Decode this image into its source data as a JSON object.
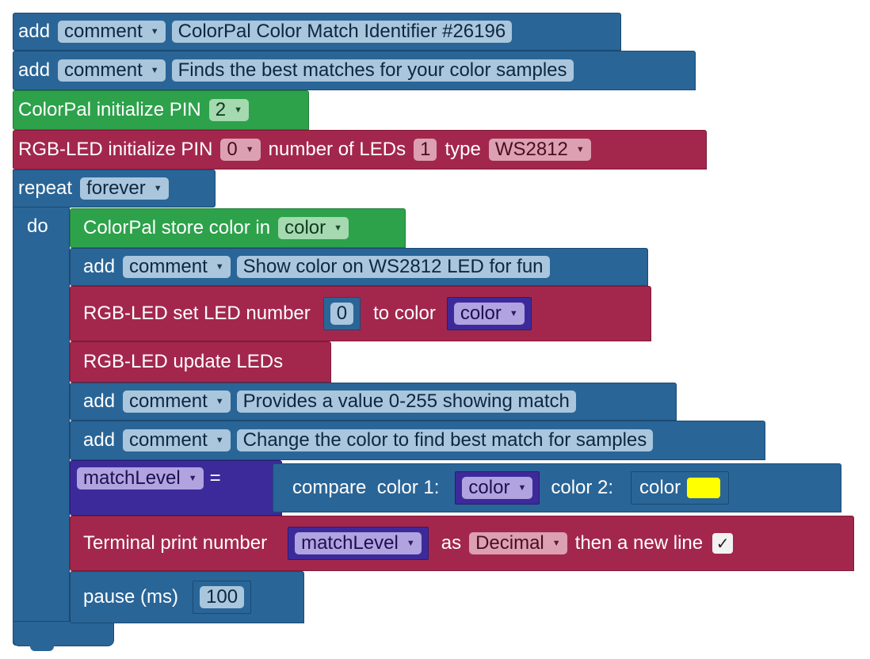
{
  "program": {
    "comment_type": "comment",
    "header_comment_1": "ColorPal Color Match Identifier #26196",
    "header_comment_2": "Finds the best matches for your color samples",
    "colorpal_init": {
      "label": "ColorPal initialize PIN",
      "pin": "2"
    },
    "rgb_init": {
      "label": "RGB-LED initialize PIN",
      "pin": "0",
      "num_label": "number of LEDs",
      "num": "1",
      "type_label": "type",
      "type": "WS2812"
    },
    "repeat": {
      "label": "repeat",
      "mode": "forever",
      "do_label": "do"
    },
    "store_color": {
      "label": "ColorPal store color in",
      "var": "color"
    },
    "comment_show": "Show color on WS2812 LED for fun",
    "set_led": {
      "label": "RGB-LED set LED number",
      "number": "0",
      "to_label": "to color",
      "color_var": "color"
    },
    "update_leds": "RGB-LED update LEDs",
    "comment_provides": "Provides a value 0-255 showing match",
    "comment_change": "Change the color to find best match for samples",
    "assign": {
      "var": "matchLevel",
      "equals": "=",
      "compare_label": "compare  color 1:",
      "color1_var": "color",
      "color2_label": "color 2:",
      "color2_block": "color",
      "color2_value": "#ffff00"
    },
    "terminal": {
      "label": "Terminal print number",
      "var": "matchLevel",
      "as_label": "as",
      "format": "Decimal",
      "newline_label": "then a new line",
      "newline_checked": "✓"
    },
    "pause": {
      "label": "pause (ms)",
      "value": "100"
    }
  },
  "colors": {
    "comment_blue": "#2a6597",
    "colorpal_green": "#2da24b",
    "rgb_crimson": "#a3274c",
    "variable_purple": "#3d2a9a"
  },
  "icons": {
    "dropdown": "caret-down-icon",
    "checkbox": "checkmark-icon"
  }
}
